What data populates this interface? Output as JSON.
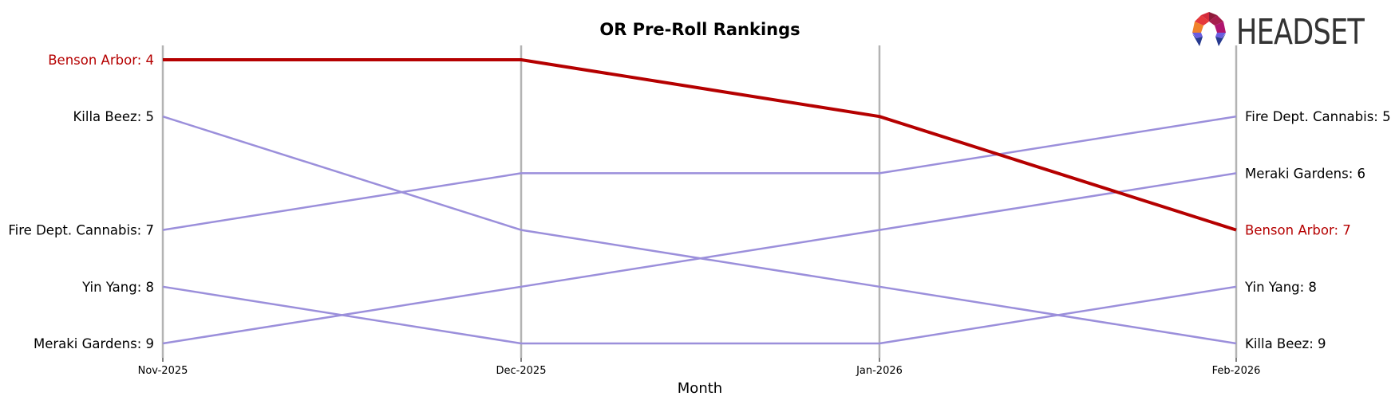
{
  "chart_data": {
    "type": "line",
    "subtype": "bump",
    "title": "OR Pre-Roll Rankings",
    "xlabel": "Month",
    "ylabel": "",
    "categories": [
      "Nov-2025",
      "Dec-2025",
      "Jan-2026",
      "Feb-2026"
    ],
    "y_inverted": true,
    "ylim": [
      4,
      9
    ],
    "grid": false,
    "highlight_series": "Benson Arbor",
    "series": [
      {
        "name": "Benson Arbor",
        "values": [
          4,
          4,
          5,
          7
        ],
        "color": "#b50000",
        "highlight": true
      },
      {
        "name": "Killa Beez",
        "values": [
          5,
          7,
          8,
          9
        ],
        "color": "#9b8fdb"
      },
      {
        "name": "Fire Dept. Cannabis",
        "values": [
          7,
          6,
          6,
          5
        ],
        "color": "#9b8fdb"
      },
      {
        "name": "Yin Yang",
        "values": [
          8,
          9,
          9,
          8
        ],
        "color": "#9b8fdb"
      },
      {
        "name": "Meraki Gardens",
        "values": [
          9,
          8,
          7,
          6
        ],
        "color": "#9b8fdb"
      }
    ],
    "left_labels": [
      {
        "text": "Benson Arbor: 4",
        "rank": 4,
        "highlight": true
      },
      {
        "text": "Killa Beez: 5",
        "rank": 5
      },
      {
        "text": "Fire Dept. Cannabis: 7",
        "rank": 7
      },
      {
        "text": "Yin Yang: 8",
        "rank": 8
      },
      {
        "text": "Meraki Gardens: 9",
        "rank": 9
      }
    ],
    "right_labels": [
      {
        "text": "Fire Dept. Cannabis: 5",
        "rank": 5
      },
      {
        "text": "Meraki Gardens: 6",
        "rank": 6
      },
      {
        "text": "Benson Arbor: 7",
        "rank": 7,
        "highlight": true
      },
      {
        "text": "Yin Yang: 8",
        "rank": 8
      },
      {
        "text": "Killa Beez: 9",
        "rank": 9
      }
    ]
  },
  "colors": {
    "highlight": "#b50000",
    "other": "#9b8fdb",
    "axis": "#b3b3b3",
    "text": "#000000"
  },
  "logo": {
    "text": "HEADSET"
  }
}
